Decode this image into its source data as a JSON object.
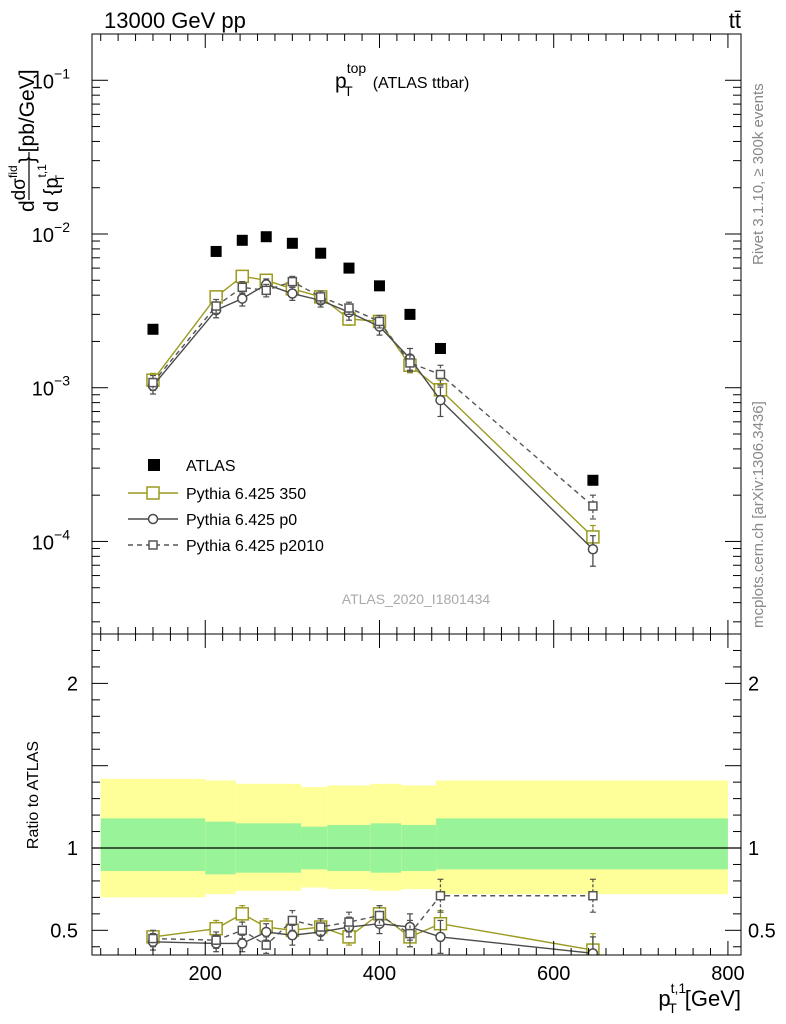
{
  "header": {
    "process": "13000 GeV pp",
    "final_state": "tt̄"
  },
  "side_labels": {
    "rivet": "Rivet 3.1.10, ≥ 300k events",
    "source": "mcplots.cern.ch [arXiv:1306.3436]"
  },
  "analysis_id": "ATLAS_2020_I1801434",
  "colors": {
    "atlas": "#000000",
    "p350": "#9a9a1e",
    "p0": "#4a4a4a",
    "p2010": "#555555",
    "band_inner": "#99f499",
    "band_outer": "#ffff99"
  },
  "chart_data": [
    {
      "type": "scatter",
      "title_main": "p",
      "title_sup": "top",
      "title_sub": "T",
      "title_suffix": "(ATLAS ttbar)",
      "ylabel": "d σ / d {p_T^t,1} [pb/GeV]",
      "ylabel_parts": {
        "d": "d",
        "dsig": "dσ",
        "fid": "fid",
        "den": "d {p",
        "sup": "t,1",
        "sub": "T",
        "close": "}",
        "unit": "[pb/GeV]"
      },
      "yscale": "log",
      "ylim": [
        2.5e-05,
        0.2
      ],
      "xlim": [
        70,
        815
      ],
      "yticks": [
        {
          "v": 0.1,
          "base": "10",
          "exp": "−1"
        },
        {
          "v": 0.01,
          "base": "10",
          "exp": "−2"
        },
        {
          "v": 0.001,
          "base": "10",
          "exp": "−3"
        },
        {
          "v": 0.0001,
          "base": "10",
          "exp": "−4"
        }
      ],
      "series": [
        {
          "name": "ATLAS",
          "style": "square-filled",
          "x": [
            140,
            212.5,
            242.5,
            270,
            300,
            332.5,
            365,
            400,
            435,
            470,
            645
          ],
          "y": [
            0.0024,
            0.0077,
            0.0091,
            0.0096,
            0.0087,
            0.0075,
            0.006,
            0.0046,
            0.003,
            0.0018,
            0.00025
          ]
        },
        {
          "name": "Pythia 6.425 350",
          "style": "square-open-solid",
          "x": [
            140,
            212.5,
            242.5,
            270,
            300,
            332.5,
            365,
            400,
            435,
            470,
            645
          ],
          "y": [
            0.00112,
            0.0039,
            0.0053,
            0.005,
            0.0044,
            0.0039,
            0.0028,
            0.0027,
            0.0014,
            0.00097,
            0.000107
          ],
          "err": [
            0.00012,
            0.00035,
            0.0004,
            0.0004,
            0.0004,
            0.00035,
            0.00025,
            0.00025,
            0.00015,
            0.00015,
            2e-05
          ]
        },
        {
          "name": "Pythia 6.425 p0",
          "style": "circle-open-solid",
          "x": [
            140,
            212.5,
            242.5,
            270,
            300,
            332.5,
            365,
            400,
            435,
            470,
            645
          ],
          "y": [
            0.00103,
            0.0032,
            0.0038,
            0.0047,
            0.0041,
            0.0037,
            0.0031,
            0.0025,
            0.00155,
            0.00083,
            8.9e-05
          ],
          "err": [
            0.00012,
            0.00035,
            0.0004,
            0.0004,
            0.0004,
            0.00035,
            0.00035,
            0.0003,
            0.00025,
            0.00018,
            2e-05
          ]
        },
        {
          "name": "Pythia 6.425 p2010",
          "style": "square-open-dashed",
          "x": [
            140,
            212.5,
            242.5,
            270,
            300,
            332.5,
            365,
            400,
            435,
            470,
            645
          ],
          "y": [
            0.00108,
            0.0034,
            0.0045,
            0.0043,
            0.0049,
            0.0039,
            0.0033,
            0.0027,
            0.00145,
            0.00122,
            0.00017
          ],
          "err": [
            0.00012,
            0.00035,
            0.0004,
            0.0004,
            0.0004,
            0.00035,
            0.0003,
            0.00025,
            0.00018,
            0.00018,
            3e-05
          ]
        }
      ]
    },
    {
      "type": "scatter",
      "ylabel": "Ratio to ATLAS",
      "yscale": "linear",
      "ylim": [
        0.35,
        2.3
      ],
      "xlim": [
        70,
        815
      ],
      "xlabel_parts": {
        "main": "p",
        "sup": "t,1",
        "sub": "T",
        "unit": "[GeV]"
      },
      "xticks": [
        200,
        400,
        600,
        800
      ],
      "yticks": [
        0.5,
        1,
        2
      ],
      "reference_line": 1,
      "bands": {
        "edges": [
          80,
          200,
          235,
          260,
          310,
          340,
          390,
          425,
          465,
          800
        ],
        "inner_lo": [
          0.86,
          0.84,
          0.85,
          0.85,
          0.87,
          0.86,
          0.85,
          0.86,
          0.87
        ],
        "inner_hi": [
          1.18,
          1.16,
          1.15,
          1.15,
          1.13,
          1.14,
          1.15,
          1.14,
          1.18
        ],
        "outer_lo": [
          0.7,
          0.72,
          0.74,
          0.74,
          0.76,
          0.75,
          0.74,
          0.75,
          0.72
        ],
        "outer_hi": [
          1.42,
          1.41,
          1.39,
          1.39,
          1.37,
          1.38,
          1.39,
          1.38,
          1.41
        ]
      },
      "series": [
        {
          "name": "Pythia 6.425 350",
          "style": "square-open-solid",
          "x": [
            140,
            212.5,
            242.5,
            270,
            300,
            332.5,
            365,
            400,
            435,
            470,
            645
          ],
          "y": [
            0.46,
            0.51,
            0.6,
            0.52,
            0.5,
            0.52,
            0.46,
            0.6,
            0.46,
            0.54,
            0.38
          ],
          "err": [
            0.03,
            0.05,
            0.05,
            0.05,
            0.05,
            0.05,
            0.05,
            0.05,
            0.06,
            0.08,
            0.1
          ]
        },
        {
          "name": "Pythia 6.425 p0",
          "style": "circle-open-solid",
          "x": [
            140,
            212.5,
            242.5,
            270,
            300,
            332.5,
            365,
            400,
            435,
            470,
            645
          ],
          "y": [
            0.43,
            0.42,
            0.42,
            0.49,
            0.47,
            0.49,
            0.52,
            0.54,
            0.52,
            0.46,
            0.36
          ],
          "err": [
            0.05,
            0.05,
            0.05,
            0.05,
            0.06,
            0.05,
            0.06,
            0.06,
            0.08,
            0.1,
            0.1
          ]
        },
        {
          "name": "Pythia 6.425 p2010",
          "style": "square-open-dashed",
          "x": [
            140,
            212.5,
            242.5,
            270,
            300,
            332.5,
            365,
            400,
            435,
            470,
            645
          ],
          "y": [
            0.45,
            0.44,
            0.5,
            0.41,
            0.56,
            0.52,
            0.55,
            0.59,
            0.48,
            0.71,
            0.71
          ],
          "err": [
            0.05,
            0.05,
            0.05,
            0.05,
            0.06,
            0.05,
            0.06,
            0.06,
            0.08,
            0.1,
            0.1
          ]
        }
      ]
    }
  ]
}
